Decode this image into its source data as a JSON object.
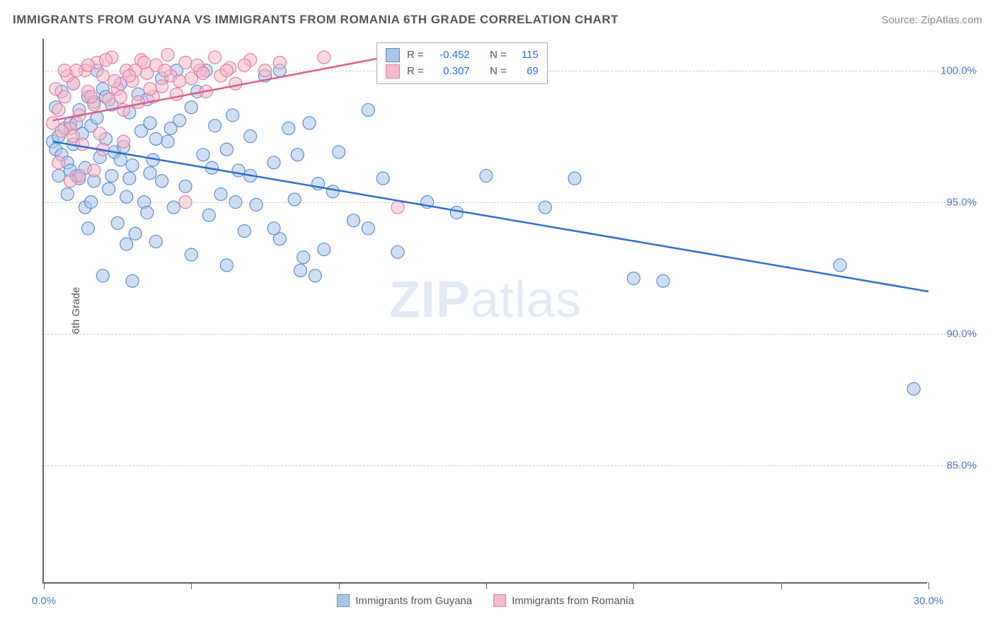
{
  "title": "IMMIGRANTS FROM GUYANA VS IMMIGRANTS FROM ROMANIA 6TH GRADE CORRELATION CHART",
  "source": "Source: ZipAtlas.com",
  "ylabel": "6th Grade",
  "watermark_bold": "ZIP",
  "watermark_rest": "atlas",
  "chart": {
    "type": "scatter",
    "xlim": [
      0,
      30
    ],
    "ylim": [
      80.5,
      101.2
    ],
    "x_ticks": [
      0,
      5,
      10,
      15,
      20,
      25,
      30
    ],
    "x_tick_labels": {
      "0": "0.0%",
      "30": "30.0%"
    },
    "y_ticks": [
      85,
      90,
      95,
      100
    ],
    "y_tick_labels": [
      "85.0%",
      "90.0%",
      "95.0%",
      "100.0%"
    ],
    "grid_color": "#cccccc",
    "background_color": "#ffffff",
    "series": [
      {
        "name": "Immigrants from Guyana",
        "color_fill": "#a9c5ea",
        "color_stroke": "#5b8ed1",
        "marker_radius": 9,
        "R": "-0.452",
        "N": "115",
        "trend": {
          "x1": 0.3,
          "y1": 97.3,
          "x2": 30,
          "y2": 91.6,
          "color": "#2a6dd4",
          "width": 2.5
        },
        "points": [
          [
            0.3,
            97.3
          ],
          [
            0.4,
            97.0
          ],
          [
            0.5,
            97.5
          ],
          [
            0.6,
            96.8
          ],
          [
            0.7,
            97.8
          ],
          [
            0.8,
            96.5
          ],
          [
            0.9,
            98.0
          ],
          [
            1.0,
            97.2
          ],
          [
            1.1,
            96.0
          ],
          [
            1.2,
            98.5
          ],
          [
            1.3,
            97.6
          ],
          [
            1.4,
            96.3
          ],
          [
            1.5,
            99.0
          ],
          [
            1.6,
            97.9
          ],
          [
            1.7,
            95.8
          ],
          [
            1.8,
            98.2
          ],
          [
            1.9,
            96.7
          ],
          [
            2.0,
            99.3
          ],
          [
            2.1,
            97.4
          ],
          [
            2.2,
            95.5
          ],
          [
            2.3,
            98.7
          ],
          [
            2.4,
            96.9
          ],
          [
            2.5,
            94.2
          ],
          [
            2.6,
            99.5
          ],
          [
            2.7,
            97.1
          ],
          [
            2.8,
            95.2
          ],
          [
            2.9,
            98.4
          ],
          [
            3.0,
            96.4
          ],
          [
            3.1,
            93.8
          ],
          [
            3.2,
            99.1
          ],
          [
            3.3,
            97.7
          ],
          [
            3.4,
            95.0
          ],
          [
            3.5,
            98.9
          ],
          [
            3.6,
            96.1
          ],
          [
            3.8,
            93.5
          ],
          [
            4.0,
            99.7
          ],
          [
            4.2,
            97.3
          ],
          [
            4.4,
            94.8
          ],
          [
            4.6,
            98.1
          ],
          [
            4.8,
            95.6
          ],
          [
            5.0,
            93.0
          ],
          [
            5.2,
            99.2
          ],
          [
            5.4,
            96.8
          ],
          [
            5.6,
            94.5
          ],
          [
            5.8,
            97.9
          ],
          [
            6.0,
            95.3
          ],
          [
            6.2,
            92.6
          ],
          [
            6.4,
            98.3
          ],
          [
            6.6,
            96.2
          ],
          [
            6.8,
            93.9
          ],
          [
            7.0,
            97.5
          ],
          [
            7.2,
            94.9
          ],
          [
            7.5,
            99.8
          ],
          [
            7.8,
            96.5
          ],
          [
            8.0,
            93.6
          ],
          [
            8.3,
            97.8
          ],
          [
            8.5,
            95.1
          ],
          [
            8.8,
            92.9
          ],
          [
            9.0,
            98.0
          ],
          [
            9.3,
            95.7
          ],
          [
            9.5,
            93.2
          ],
          [
            10.0,
            96.9
          ],
          [
            10.5,
            94.3
          ],
          [
            11.0,
            98.5
          ],
          [
            11.5,
            95.9
          ],
          [
            12.0,
            93.1
          ],
          [
            13.0,
            95.0
          ],
          [
            14.0,
            94.6
          ],
          [
            15.0,
            96.0
          ],
          [
            17.0,
            94.8
          ],
          [
            18.0,
            95.9
          ],
          [
            20.0,
            92.1
          ],
          [
            21.0,
            92.0
          ],
          [
            27.0,
            92.6
          ],
          [
            29.5,
            87.9
          ],
          [
            2.0,
            92.2
          ],
          [
            3.0,
            92.0
          ],
          [
            1.5,
            94.0
          ],
          [
            0.8,
            95.3
          ],
          [
            1.2,
            95.9
          ],
          [
            4.5,
            100.0
          ],
          [
            1.8,
            100.0
          ],
          [
            0.6,
            99.2
          ],
          [
            0.4,
            98.6
          ],
          [
            1.0,
            99.5
          ],
          [
            3.5,
            94.6
          ],
          [
            5.5,
            100.0
          ],
          [
            6.2,
            97.0
          ],
          [
            7.0,
            96.0
          ],
          [
            4.0,
            95.8
          ],
          [
            2.8,
            93.4
          ],
          [
            3.6,
            98.0
          ],
          [
            1.4,
            94.8
          ],
          [
            0.9,
            96.2
          ],
          [
            2.3,
            96.0
          ],
          [
            1.7,
            98.8
          ],
          [
            2.6,
            96.6
          ],
          [
            3.8,
            97.4
          ],
          [
            5.0,
            98.6
          ],
          [
            0.5,
            96.0
          ],
          [
            1.1,
            98.0
          ],
          [
            1.6,
            95.0
          ],
          [
            2.1,
            99.0
          ],
          [
            2.9,
            95.9
          ],
          [
            3.7,
            96.6
          ],
          [
            4.3,
            97.8
          ],
          [
            5.7,
            96.3
          ],
          [
            6.5,
            95.0
          ],
          [
            7.8,
            94.0
          ],
          [
            8.6,
            96.8
          ],
          [
            9.8,
            95.4
          ],
          [
            11.0,
            94.0
          ],
          [
            8.0,
            100.0
          ],
          [
            8.7,
            92.4
          ],
          [
            9.2,
            92.2
          ]
        ]
      },
      {
        "name": "Immigrants from Romania",
        "color_fill": "#f4b9cb",
        "color_stroke": "#e57ba2",
        "marker_radius": 9,
        "R": "0.307",
        "N": "69",
        "trend": {
          "x1": 0.3,
          "y1": 98.1,
          "x2": 12,
          "y2": 100.6,
          "color": "#e05a8a",
          "width": 2.5
        },
        "points": [
          [
            0.3,
            98.0
          ],
          [
            0.5,
            98.5
          ],
          [
            0.7,
            99.0
          ],
          [
            0.9,
            97.8
          ],
          [
            1.0,
            99.5
          ],
          [
            1.2,
            98.3
          ],
          [
            1.4,
            100.0
          ],
          [
            1.5,
            99.2
          ],
          [
            1.7,
            98.7
          ],
          [
            1.8,
            100.3
          ],
          [
            2.0,
            99.8
          ],
          [
            2.2,
            98.9
          ],
          [
            2.3,
            100.5
          ],
          [
            2.5,
            99.3
          ],
          [
            2.7,
            98.5
          ],
          [
            2.8,
            100.0
          ],
          [
            3.0,
            99.6
          ],
          [
            3.2,
            98.8
          ],
          [
            3.3,
            100.4
          ],
          [
            3.5,
            99.9
          ],
          [
            3.7,
            99.0
          ],
          [
            3.8,
            100.2
          ],
          [
            4.0,
            99.4
          ],
          [
            4.2,
            100.6
          ],
          [
            4.5,
            99.1
          ],
          [
            4.8,
            100.3
          ],
          [
            5.0,
            99.7
          ],
          [
            5.3,
            100.0
          ],
          [
            5.5,
            99.2
          ],
          [
            5.8,
            100.5
          ],
          [
            6.0,
            99.8
          ],
          [
            6.3,
            100.1
          ],
          [
            6.5,
            99.5
          ],
          [
            7.0,
            100.4
          ],
          [
            7.5,
            100.0
          ],
          [
            8.0,
            100.3
          ],
          [
            9.5,
            100.5
          ],
          [
            1.0,
            97.5
          ],
          [
            1.3,
            97.2
          ],
          [
            2.0,
            97.0
          ],
          [
            0.6,
            97.7
          ],
          [
            0.8,
            99.8
          ],
          [
            1.1,
            100.0
          ],
          [
            1.6,
            99.0
          ],
          [
            2.4,
            99.6
          ],
          [
            3.1,
            100.0
          ],
          [
            3.6,
            99.3
          ],
          [
            4.3,
            99.8
          ],
          [
            5.2,
            100.2
          ],
          [
            4.8,
            95.0
          ],
          [
            12.0,
            94.8
          ],
          [
            0.4,
            99.3
          ],
          [
            0.7,
            100.0
          ],
          [
            1.5,
            100.2
          ],
          [
            2.1,
            100.4
          ],
          [
            2.6,
            99.0
          ],
          [
            2.9,
            99.8
          ],
          [
            3.4,
            100.3
          ],
          [
            4.1,
            100.0
          ],
          [
            4.6,
            99.6
          ],
          [
            5.4,
            99.9
          ],
          [
            6.2,
            100.0
          ],
          [
            6.8,
            100.2
          ],
          [
            1.9,
            97.6
          ],
          [
            2.7,
            97.3
          ],
          [
            0.5,
            96.5
          ],
          [
            1.2,
            96.0
          ],
          [
            0.9,
            95.8
          ],
          [
            1.7,
            96.2
          ]
        ]
      }
    ]
  },
  "bottom_legend": [
    {
      "label": "Immigrants from Guyana",
      "fill": "#a9c5ea",
      "stroke": "#5b8ed1"
    },
    {
      "label": "Immigrants from Romania",
      "fill": "#f4b9cb",
      "stroke": "#e57ba2"
    }
  ]
}
